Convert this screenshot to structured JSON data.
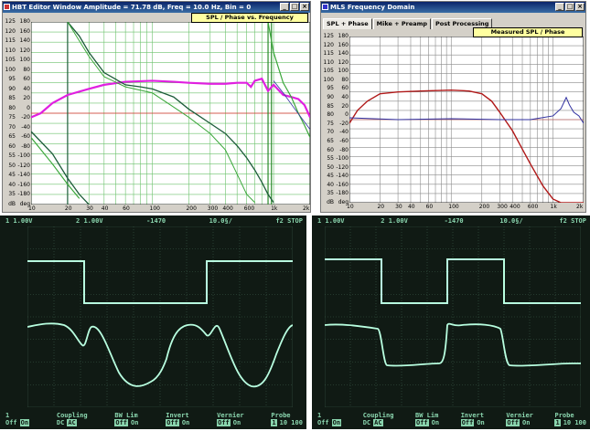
{
  "hbt_window": {
    "title": "HBT Editor Window  Amplitude = 71.78 dB, Freq = 10.0 Hz, Bin = 0",
    "plot_title": "SPL / Phase vs. Frequency",
    "y_left_ticks": [
      "125",
      "120",
      "115",
      "110",
      "105",
      "100",
      "95",
      "90",
      "85",
      "80",
      "75",
      "70",
      "65",
      "60",
      "55",
      "50",
      "45",
      "40",
      "35",
      "dB"
    ],
    "y_right_ticks": [
      "180",
      "160",
      "140",
      "120",
      "100",
      "80",
      "60",
      "40",
      "20",
      "0",
      "-20",
      "-40",
      "-60",
      "-80",
      "-100",
      "-120",
      "-140",
      "-160",
      "-180",
      "deg"
    ],
    "x_ticks": [
      "10",
      "20",
      "30",
      "40",
      "60",
      "100",
      "200",
      "300",
      "400",
      "600",
      "1k",
      "2k"
    ]
  },
  "mls_window": {
    "title": "MLS Frequency Domain",
    "tabs": [
      "SPL + Phase",
      "Mike + Preamp",
      "Post Processing"
    ],
    "plot_title": "Measured SPL / Phase",
    "y_left_ticks": [
      "125",
      "120",
      "115",
      "110",
      "105",
      "100",
      "95",
      "90",
      "85",
      "80",
      "75",
      "70",
      "65",
      "60",
      "55",
      "50",
      "45",
      "40",
      "35",
      "dB"
    ],
    "y_right_ticks": [
      "180",
      "160",
      "140",
      "120",
      "100",
      "80",
      "60",
      "40",
      "20",
      "0",
      "-20",
      "-40",
      "-60",
      "-80",
      "-100",
      "-120",
      "-140",
      "-160",
      "-180",
      "deg"
    ],
    "x_ticks": [
      "10",
      "20",
      "30",
      "40",
      "60",
      "100",
      "200",
      "300",
      "400",
      "600",
      "1k",
      "2k"
    ]
  },
  "scope_left": {
    "top_ch1": "1   1.00V",
    "top_ch2": "2   1.00V",
    "top_time": "-1470",
    "top_div": "10.0§/",
    "top_stop": "f2 STOP",
    "bottom": [
      {
        "label": "1",
        "opt1": "Off",
        "opt2": "On",
        "sel": 1
      },
      {
        "label": "Coupling",
        "opt1": "DC",
        "opt2": "AC",
        "sel": 1
      },
      {
        "label": "BW Lim",
        "opt1": "Off",
        "opt2": "On",
        "sel": 0
      },
      {
        "label": "Invert",
        "opt1": "Off",
        "opt2": "On",
        "sel": 0
      },
      {
        "label": "Vernier",
        "opt1": "Off",
        "opt2": "On",
        "sel": 0
      },
      {
        "label": "Probe",
        "opt1": "1",
        "opt2": "10 100",
        "sel": 0
      }
    ]
  },
  "scope_right": {
    "top_ch1": "1   1.00V",
    "top_ch2": "2   1.00V",
    "top_time": "-1470",
    "top_div": "10.0§/",
    "top_stop": "f2 STOP",
    "bottom": [
      {
        "label": "1",
        "opt1": "Off",
        "opt2": "On",
        "sel": 1
      },
      {
        "label": "Coupling",
        "opt1": "DC",
        "opt2": "AC",
        "sel": 1
      },
      {
        "label": "BW Lim",
        "opt1": "Off",
        "opt2": "On",
        "sel": 0
      },
      {
        "label": "Invert",
        "opt1": "Off",
        "opt2": "On",
        "sel": 0
      },
      {
        "label": "Vernier",
        "opt1": "Off",
        "opt2": "On",
        "sel": 0
      },
      {
        "label": "Probe",
        "opt1": "1",
        "opt2": "10 100",
        "sel": 0
      }
    ]
  },
  "colors": {
    "grid_green": "#6cc26c",
    "spl_magenta": "#e020e0",
    "phase_dkgreen": "#1d5c3a",
    "phase_green": "#3aa63a",
    "mls_spl": "#b01818",
    "mls_phase": "#3030a0",
    "scope_trace": "#b8ffe0"
  }
}
